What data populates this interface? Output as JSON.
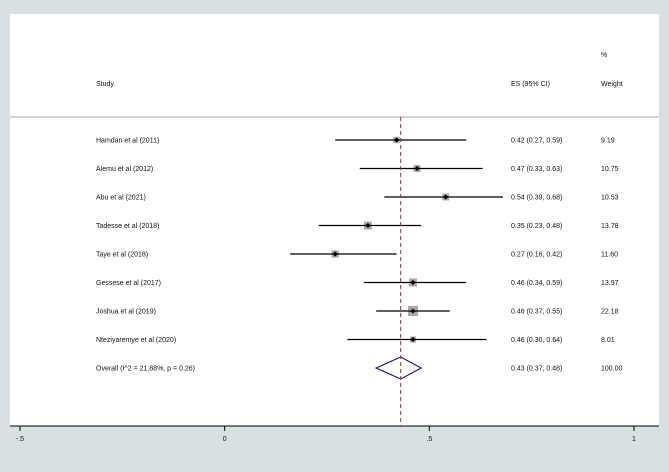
{
  "chart_data": {
    "type": "forest",
    "headers": {
      "study": "Study",
      "es": "ES (95% CI)",
      "weight_top": "%",
      "weight": "Weight"
    },
    "studies": [
      {
        "label": "Hamdan et al (2011)",
        "es": 0.42,
        "lo": 0.27,
        "hi": 0.59,
        "es_text": "0.42 (0.27, 0.59)",
        "weight": "9.19"
      },
      {
        "label": "Alemu et al (2012)",
        "es": 0.47,
        "lo": 0.33,
        "hi": 0.63,
        "es_text": "0.47 (0.33, 0.63)",
        "weight": "10.75"
      },
      {
        "label": "Abu et al (2021)",
        "es": 0.54,
        "lo": 0.39,
        "hi": 0.68,
        "es_text": "0.54 (0.39, 0.68)",
        "weight": "10.53"
      },
      {
        "label": "Tadesse et al (2018)",
        "es": 0.35,
        "lo": 0.23,
        "hi": 0.48,
        "es_text": "0.35 (0.23, 0.48)",
        "weight": "13.78"
      },
      {
        "label": "Taye et al (2018)",
        "es": 0.27,
        "lo": 0.16,
        "hi": 0.42,
        "es_text": "0.27 (0.16, 0.42)",
        "weight": "11.60"
      },
      {
        "label": "Gessese et al (2017)",
        "es": 0.46,
        "lo": 0.34,
        "hi": 0.59,
        "es_text": "0.46 (0.34, 0.59)",
        "weight": "13.97"
      },
      {
        "label": "Joshua et al (2019)",
        "es": 0.46,
        "lo": 0.37,
        "hi": 0.55,
        "es_text": "0.46 (0.37, 0.55)",
        "weight": "22.18"
      },
      {
        "label": "Nteziyaremye et al (2020)",
        "es": 0.46,
        "lo": 0.3,
        "hi": 0.64,
        "es_text": "0.46 (0.30, 0.64)",
        "weight": "8.01"
      }
    ],
    "overall": {
      "label": "Overall  (I^2 = 21.88%, p = 0.26)",
      "es": 0.43,
      "lo": 0.37,
      "hi": 0.48,
      "es_text": "0.43 (0.37, 0.48)",
      "weight": "100.00"
    },
    "x_ticks": [
      -0.5,
      0,
      0.5,
      1
    ],
    "x_tick_labels": [
      "-.5",
      "0",
      ".5",
      "1"
    ],
    "xlim": [
      -0.5,
      1
    ],
    "colors": {
      "background": "#d8e0e4",
      "plot_background": "#ffffff",
      "ci_line": "#000000",
      "weight_box": "#a9a9a9",
      "point": "#000000",
      "overall_diamond": "#1f1f7a",
      "reference_line": "#a52a2a"
    }
  }
}
